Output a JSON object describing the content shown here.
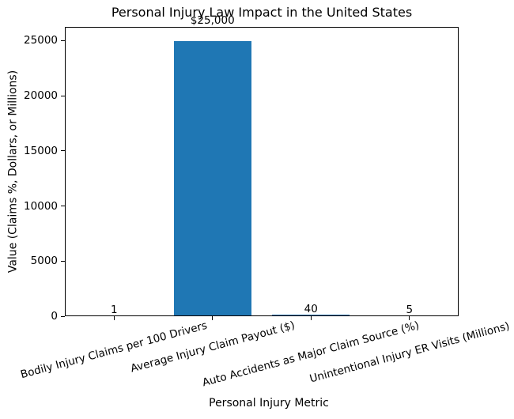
{
  "chart_data": {
    "type": "bar",
    "title": "Personal Injury Law Impact in the United States",
    "xlabel": "Personal Injury Metric",
    "ylabel": "Value (Claims %, Dollars, or Millions)",
    "categories": [
      "Bodily Injury Claims per 100 Drivers",
      "Average Injury Claim Payout ($)",
      "Auto Accidents as Major Claim Source (%)",
      "Unintentional Injury ER Visits (Millions)"
    ],
    "values": [
      1,
      25000,
      40,
      5
    ],
    "bar_labels": [
      "1",
      "$25,000",
      "40",
      "5"
    ],
    "yticks": [
      0,
      5000,
      10000,
      15000,
      20000,
      25000
    ],
    "ytick_labels": [
      "0",
      "5000",
      "10000",
      "15000",
      "20000",
      "25000"
    ],
    "ylim": [
      0,
      26250
    ],
    "x_tick_rotation_deg": 15,
    "grid": false,
    "legend": null,
    "bar_color": "#1f77b4",
    "axis_color": "#000000",
    "text_color": "#000000",
    "background_color": "#ffffff"
  }
}
